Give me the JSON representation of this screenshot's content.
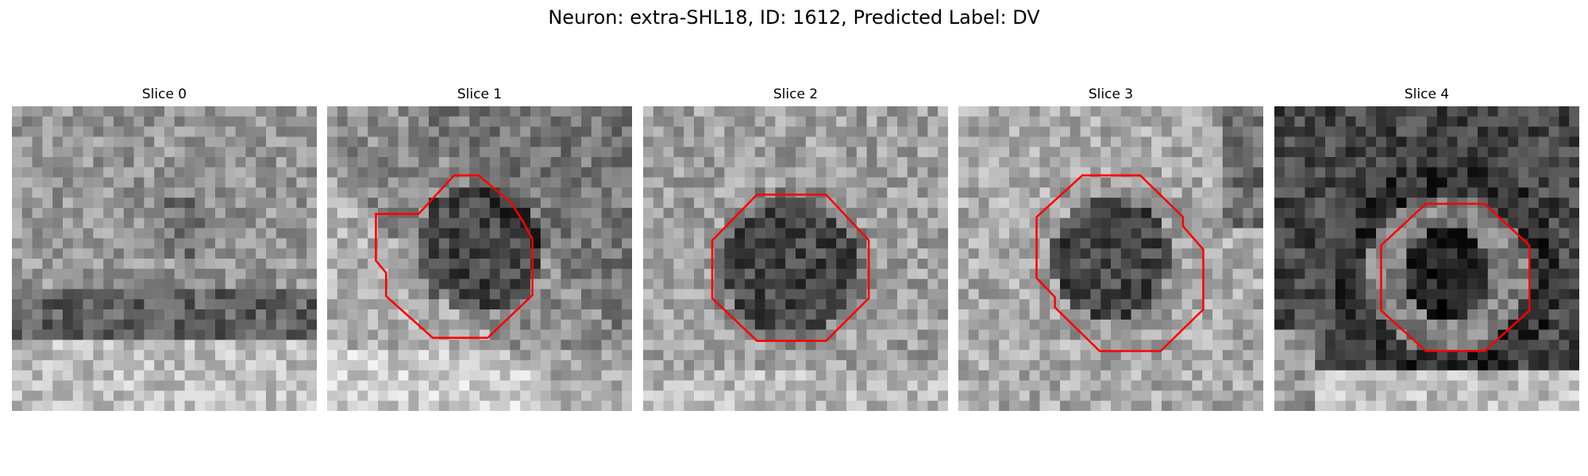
{
  "figure": {
    "title": "Neuron: extra-SHL18, ID: 1612, Predicted Label: DV",
    "outline_color": "#ff0000"
  },
  "slices": [
    {
      "title": "Slice 0",
      "has_outline": false,
      "center_tone": "neutral"
    },
    {
      "title": "Slice 1",
      "has_outline": true,
      "center_tone": "dark"
    },
    {
      "title": "Slice 2",
      "has_outline": true,
      "center_tone": "dark"
    },
    {
      "title": "Slice 3",
      "has_outline": true,
      "center_tone": "dark"
    },
    {
      "title": "Slice 4",
      "has_outline": true,
      "center_tone": "dark-ring"
    }
  ]
}
